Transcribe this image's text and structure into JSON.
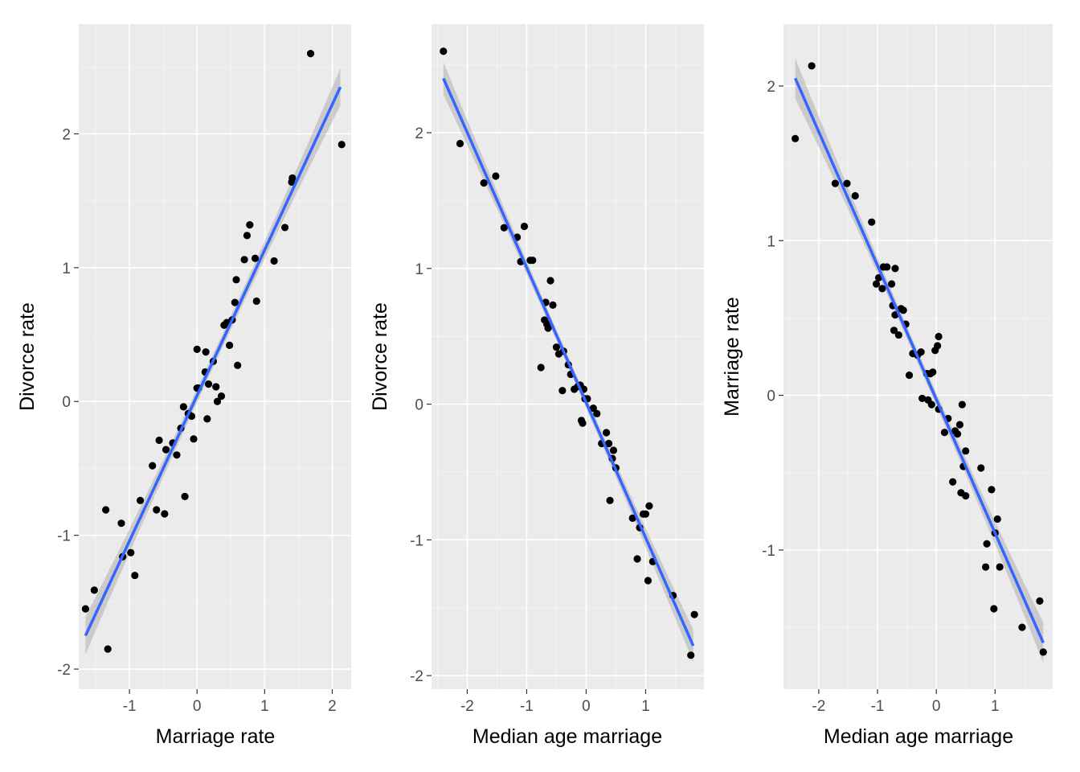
{
  "chart_data": [
    {
      "type": "scatter",
      "xlabel": "Marriage rate",
      "ylabel": "Divorce rate",
      "xlim": [
        -1.75,
        2.28
      ],
      "ylim": [
        -2.15,
        2.82
      ],
      "x_ticks": [
        -1,
        0,
        1,
        2
      ],
      "y_ticks": [
        -2,
        -1,
        0,
        1,
        2
      ],
      "x_tick_labels": [
        "-1",
        "0",
        "1",
        "2"
      ],
      "y_tick_labels": [
        "-2",
        "-1",
        "0",
        "1",
        "2"
      ],
      "grid": true,
      "legend": "none",
      "smooth": {
        "method": "linear",
        "x": [
          -1.65,
          2.12
        ],
        "y": [
          -1.75,
          2.35
        ],
        "se_halfwidth_ends": 0.14,
        "se_halfwidth_mid": 0.05,
        "color": "#3366ff"
      },
      "points": {
        "x": [
          -1.65,
          -1.52,
          -1.35,
          -1.32,
          -1.12,
          -1.1,
          -0.98,
          -0.92,
          -0.84,
          -0.66,
          -0.6,
          -0.56,
          -0.48,
          -0.46,
          -0.36,
          -0.3,
          -0.24,
          -0.2,
          -0.18,
          -0.13,
          -0.08,
          -0.05,
          0.0,
          0.0,
          0.02,
          0.12,
          0.13,
          0.15,
          0.17,
          0.24,
          0.28,
          0.3,
          0.36,
          0.4,
          0.44,
          0.48,
          0.52,
          0.56,
          0.58,
          0.6,
          0.7,
          0.74,
          0.78,
          0.86,
          0.88,
          1.14,
          1.3,
          1.4,
          1.41,
          1.68,
          2.14
        ],
        "y": [
          -1.55,
          -1.41,
          -0.81,
          -1.85,
          -0.91,
          -1.16,
          -1.13,
          -1.3,
          -0.74,
          -0.48,
          -0.81,
          -0.29,
          -0.84,
          -0.36,
          -0.31,
          -0.4,
          -0.2,
          -0.04,
          -0.71,
          -0.09,
          -0.11,
          -0.28,
          0.39,
          0.1,
          0.1,
          0.22,
          0.37,
          -0.13,
          0.13,
          0.3,
          0.11,
          0.0,
          0.04,
          0.57,
          0.59,
          0.42,
          0.61,
          0.74,
          0.91,
          0.27,
          1.06,
          1.24,
          1.32,
          1.07,
          0.75,
          1.05,
          1.3,
          1.64,
          1.67,
          2.6,
          1.92
        ]
      }
    },
    {
      "type": "scatter",
      "xlabel": "Median age marriage",
      "ylabel": "Divorce rate",
      "xlim": [
        -2.6,
        1.98
      ],
      "ylim": [
        -2.1,
        2.8
      ],
      "x_ticks": [
        -2,
        -1,
        0,
        1
      ],
      "y_ticks": [
        -2,
        -1,
        0,
        1,
        2
      ],
      "x_tick_labels": [
        "-2",
        "-1",
        "0",
        "1"
      ],
      "y_tick_labels": [
        "-2",
        "-1",
        "0",
        "1",
        "2"
      ],
      "grid": true,
      "legend": "none",
      "smooth": {
        "method": "linear",
        "x": [
          -2.4,
          1.8
        ],
        "y": [
          2.4,
          -1.78
        ],
        "se_halfwidth_ends": 0.12,
        "se_halfwidth_mid": 0.04,
        "color": "#3366ff"
      },
      "points": {
        "x": [
          -2.4,
          -2.12,
          -1.72,
          -1.52,
          -1.38,
          -1.16,
          -1.1,
          -1.04,
          -0.94,
          -0.9,
          -0.76,
          -0.7,
          -0.68,
          -0.66,
          -0.64,
          -0.6,
          -0.56,
          -0.5,
          -0.46,
          -0.4,
          -0.38,
          -0.3,
          -0.26,
          -0.2,
          -0.14,
          -0.1,
          -0.08,
          -0.06,
          -0.04,
          -0.02,
          0.02,
          0.12,
          0.18,
          0.26,
          0.34,
          0.38,
          0.4,
          0.44,
          0.46,
          0.5,
          0.78,
          0.86,
          0.9,
          0.96,
          1.0,
          1.04,
          1.06,
          1.12,
          1.46,
          1.76,
          1.82
        ],
        "y": [
          2.6,
          1.92,
          1.63,
          1.68,
          1.3,
          1.23,
          1.05,
          1.31,
          1.06,
          1.06,
          0.27,
          0.62,
          0.75,
          0.59,
          0.56,
          0.91,
          0.73,
          0.42,
          0.37,
          0.1,
          0.39,
          0.29,
          0.22,
          0.11,
          0.13,
          0.14,
          -0.12,
          -0.14,
          0.11,
          0.04,
          0.04,
          -0.03,
          -0.07,
          -0.29,
          -0.21,
          -0.29,
          -0.71,
          -0.4,
          -0.34,
          -0.47,
          -0.84,
          -1.14,
          -0.91,
          -0.81,
          -0.81,
          -1.3,
          -0.75,
          -1.16,
          -1.41,
          -1.85,
          -1.55
        ]
      }
    },
    {
      "type": "scatter",
      "xlabel": "Median age marriage",
      "ylabel": "Marriage rate",
      "xlim": [
        -2.6,
        1.98
      ],
      "ylim": [
        -1.9,
        2.4
      ],
      "x_ticks": [
        -2,
        -1,
        0,
        1
      ],
      "y_ticks": [
        -1,
        0,
        1,
        2
      ],
      "x_tick_labels": [
        "-2",
        "-1",
        "0",
        "1"
      ],
      "y_tick_labels": [
        "-1",
        "0",
        "1",
        "2"
      ],
      "grid": true,
      "legend": "none",
      "smooth": {
        "method": "linear",
        "x": [
          -2.4,
          1.82
        ],
        "y": [
          2.05,
          -1.6
        ],
        "se_halfwidth_ends": 0.13,
        "se_halfwidth_mid": 0.04,
        "color": "#3366ff"
      },
      "points": {
        "x": [
          -2.4,
          -2.12,
          -1.72,
          -1.52,
          -1.38,
          -1.1,
          -1.02,
          -0.98,
          -0.92,
          -0.9,
          -0.84,
          -0.76,
          -0.74,
          -0.72,
          -0.7,
          -0.7,
          -0.64,
          -0.6,
          -0.56,
          -0.52,
          -0.46,
          -0.4,
          -0.32,
          -0.26,
          -0.24,
          -0.16,
          -0.14,
          -0.1,
          -0.08,
          -0.06,
          -0.02,
          0.02,
          0.04,
          0.04,
          0.14,
          0.2,
          0.28,
          0.32,
          0.36,
          0.4,
          0.42,
          0.44,
          0.46,
          0.5,
          0.5,
          0.76,
          0.84,
          0.86,
          0.94,
          0.98,
          1.0,
          1.04,
          1.08,
          1.46,
          1.76,
          1.82
        ],
        "y": [
          1.66,
          2.13,
          1.37,
          1.37,
          1.29,
          1.12,
          0.72,
          0.76,
          0.69,
          0.83,
          0.83,
          0.72,
          0.58,
          0.42,
          0.82,
          0.52,
          0.39,
          0.56,
          0.55,
          0.46,
          0.13,
          0.27,
          0.26,
          0.28,
          -0.02,
          0.14,
          -0.03,
          0.14,
          -0.06,
          0.15,
          0.29,
          0.32,
          0.38,
          -0.09,
          -0.24,
          -0.15,
          -0.56,
          -0.23,
          -0.25,
          -0.19,
          -0.63,
          -0.06,
          -0.46,
          -0.36,
          -0.65,
          -0.47,
          -1.11,
          -0.96,
          -0.61,
          -1.38,
          -0.89,
          -0.8,
          -1.11,
          -1.5,
          -1.33,
          -1.66
        ]
      }
    }
  ]
}
